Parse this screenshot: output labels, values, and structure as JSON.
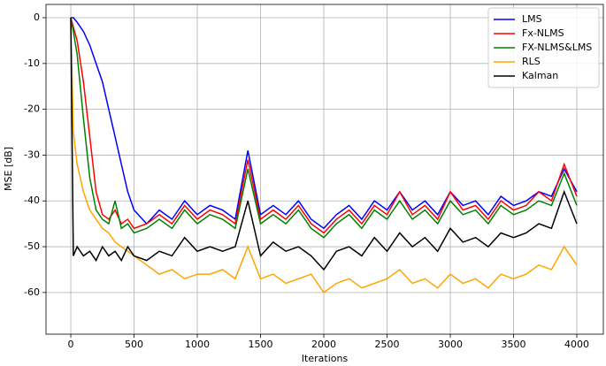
{
  "chart_data": {
    "type": "line",
    "xlabel": "Iterations",
    "ylabel": "MSE [dB]",
    "x": [
      0,
      20,
      50,
      100,
      150,
      200,
      250,
      300,
      350,
      400,
      450,
      500,
      600,
      700,
      800,
      900,
      1000,
      1100,
      1200,
      1300,
      1400,
      1500,
      1600,
      1700,
      1800,
      1900,
      2000,
      2100,
      2200,
      2300,
      2400,
      2500,
      2600,
      2700,
      2800,
      2900,
      3000,
      3100,
      3200,
      3300,
      3400,
      3500,
      3600,
      3700,
      3800,
      3900,
      4000
    ],
    "series": [
      {
        "name": "LMS",
        "color": "#0000ff",
        "values": [
          0,
          0,
          -1,
          -3,
          -6,
          -10,
          -14,
          -20,
          -26,
          -32,
          -38,
          -42,
          -45,
          -42,
          -44,
          -40,
          -43,
          -41,
          -42,
          -44,
          -29,
          -43,
          -41,
          -43,
          -40,
          -44,
          -46,
          -43,
          -41,
          -44,
          -40,
          -42,
          -38,
          -42,
          -40,
          -43,
          -38,
          -41,
          -40,
          -43,
          -39,
          -41,
          -40,
          -38,
          -39,
          -33,
          -38
        ]
      },
      {
        "name": "Fx-NLMS",
        "color": "#ff0000",
        "values": [
          0,
          -2,
          -5,
          -14,
          -26,
          -38,
          -43,
          -44,
          -42,
          -45,
          -44,
          -46,
          -45,
          -43,
          -45,
          -41,
          -44,
          -42,
          -43,
          -45,
          -31,
          -44,
          -42,
          -44,
          -41,
          -45,
          -47,
          -44,
          -42,
          -45,
          -41,
          -43,
          -38,
          -43,
          -41,
          -44,
          -38,
          -42,
          -41,
          -44,
          -40,
          -42,
          -41,
          -38,
          -40,
          -32,
          -39
        ]
      },
      {
        "name": "FX-NLMS&LMS",
        "color": "#008000",
        "values": [
          0,
          -3,
          -8,
          -22,
          -35,
          -42,
          -44,
          -45,
          -40,
          -46,
          -45,
          -47,
          -46,
          -44,
          -46,
          -42,
          -45,
          -43,
          -44,
          -46,
          -33,
          -45,
          -43,
          -45,
          -42,
          -46,
          -48,
          -45,
          -43,
          -46,
          -42,
          -44,
          -40,
          -44,
          -42,
          -45,
          -40,
          -43,
          -42,
          -45,
          -41,
          -43,
          -42,
          -40,
          -41,
          -34,
          -41
        ]
      },
      {
        "name": "RLS",
        "color": "#ffa500",
        "values": [
          0,
          -25,
          -32,
          -38,
          -42,
          -44,
          -46,
          -47,
          -49,
          -50,
          -51,
          -52,
          -54,
          -56,
          -55,
          -57,
          -56,
          -56,
          -55,
          -57,
          -50,
          -57,
          -56,
          -58,
          -57,
          -56,
          -60,
          -58,
          -57,
          -59,
          -58,
          -57,
          -55,
          -58,
          -57,
          -59,
          -56,
          -58,
          -57,
          -59,
          -56,
          -57,
          -56,
          -54,
          -55,
          -50,
          -54
        ]
      },
      {
        "name": "Kalman",
        "color": "#000000",
        "values": [
          0,
          -52,
          -50,
          -52,
          -51,
          -53,
          -50,
          -52,
          -51,
          -53,
          -50,
          -52,
          -53,
          -51,
          -52,
          -48,
          -51,
          -50,
          -51,
          -50,
          -40,
          -52,
          -49,
          -51,
          -50,
          -52,
          -55,
          -51,
          -50,
          -52,
          -48,
          -51,
          -47,
          -50,
          -48,
          -51,
          -46,
          -49,
          -48,
          -50,
          -47,
          -48,
          -47,
          -45,
          -46,
          -38,
          -45
        ]
      }
    ],
    "xlim": [
      -196,
      4210
    ],
    "ylim": [
      -69.1,
      2.9
    ],
    "xticks": [
      0,
      500,
      1000,
      1500,
      2000,
      2500,
      3000,
      3500,
      4000
    ],
    "yticks": [
      0,
      -10,
      -20,
      -30,
      -40,
      -50,
      -60
    ],
    "grid": true,
    "legend": "upper right"
  }
}
